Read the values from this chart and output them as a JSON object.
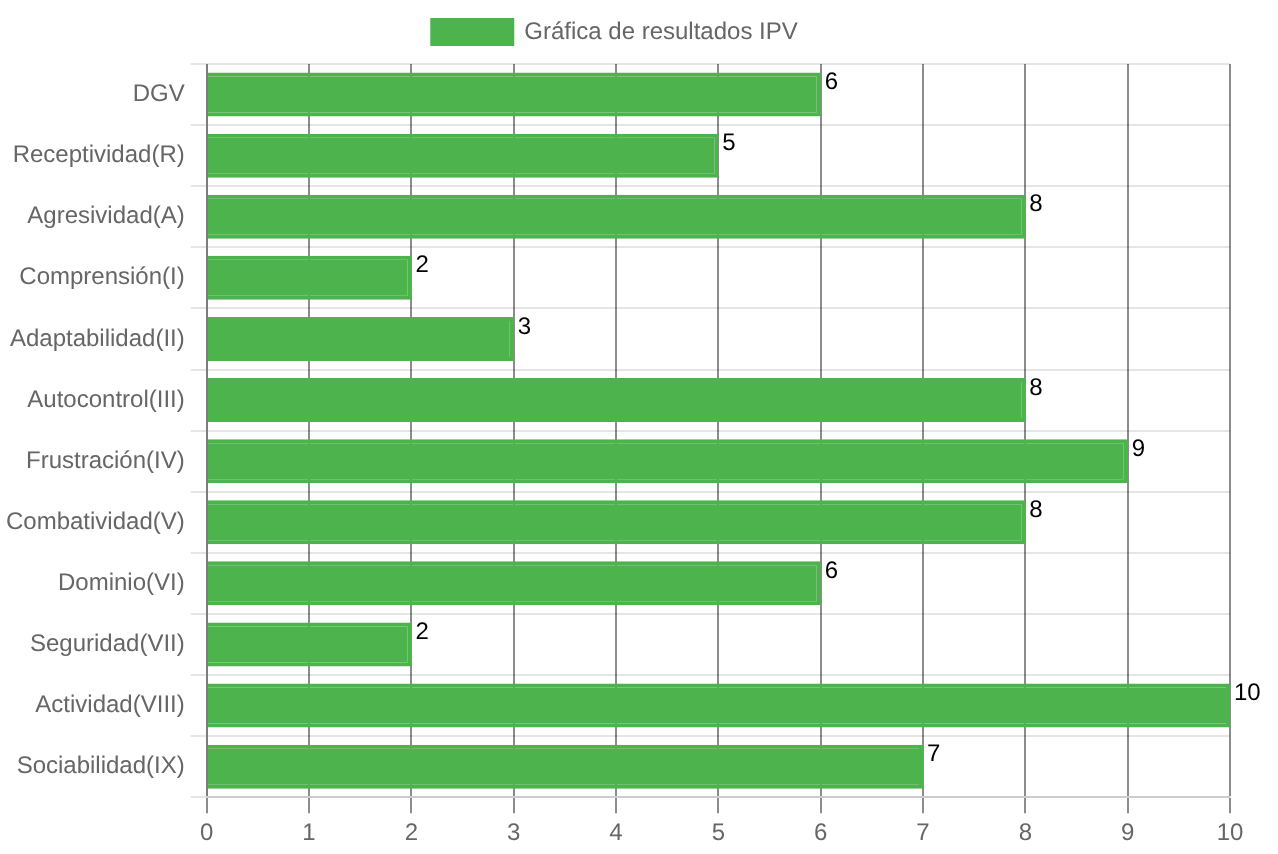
{
  "chart_data": {
    "type": "bar",
    "orientation": "horizontal",
    "categories": [
      "DGV",
      "Receptividad(R)",
      "Agresividad(A)",
      "Comprensión(I)",
      "Adaptabilidad(II)",
      "Autocontrol(III)",
      "Frustración(IV)",
      "Combatividad(V)",
      "Dominio(VI)",
      "Seguridad(VII)",
      "Actividad(VIII)",
      "Sociabilidad(IX)"
    ],
    "series": [
      {
        "name": "Gráfica de resultados IPV",
        "color": "#4db34d",
        "values": [
          6,
          5,
          8,
          2,
          3,
          8,
          9,
          8,
          6,
          2,
          10,
          7
        ]
      }
    ],
    "xlim": [
      0,
      10
    ],
    "xticks": [
      0,
      1,
      2,
      3,
      4,
      5,
      6,
      7,
      8,
      9,
      10
    ],
    "grid": true,
    "legend": "top",
    "data_labels": true
  }
}
